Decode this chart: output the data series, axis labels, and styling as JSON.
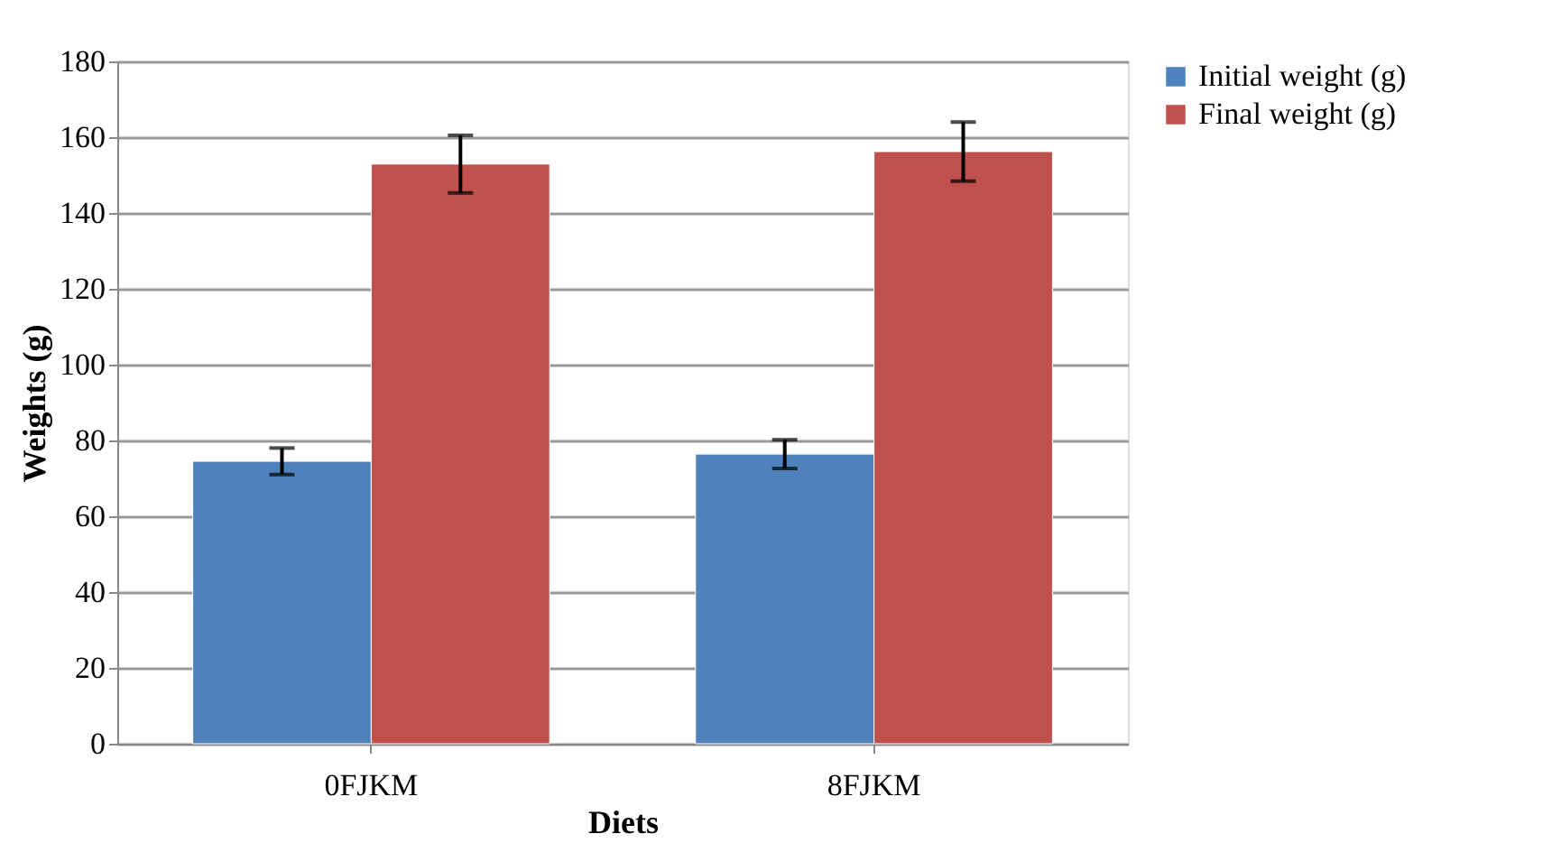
{
  "chart_data": {
    "type": "bar",
    "xlabel": "Diets",
    "ylabel": "Weights (g)",
    "categories": [
      "0FJKM",
      "8FJKM"
    ],
    "series": [
      {
        "name": "Initial weight (g)",
        "color": "#4f81bd",
        "values": [
          74.5,
          76.4
        ],
        "errors": [
          3.5,
          3.8
        ]
      },
      {
        "name": "Final weight (g)",
        "color": "#c0504d",
        "values": [
          152.9,
          156.2
        ],
        "errors": [
          7.6,
          7.8
        ]
      }
    ],
    "ylim": [
      0,
      180
    ],
    "yticks": [
      0,
      20,
      40,
      60,
      80,
      100,
      120,
      140,
      160,
      180
    ],
    "grid": "y",
    "legend": "top right"
  }
}
